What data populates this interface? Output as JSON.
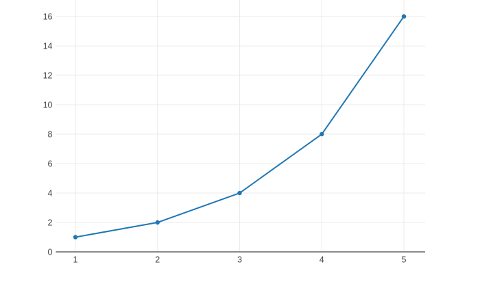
{
  "chart_data": {
    "type": "line",
    "title": "",
    "xlabel": "",
    "ylabel": "",
    "legend": false,
    "grid": true,
    "series": [
      {
        "x": [
          1,
          2,
          3,
          4,
          5
        ],
        "y": [
          1,
          2,
          4,
          8,
          16
        ],
        "color": "#1f77b4",
        "marker": "circle",
        "marker_size": 3.2,
        "line_width": 2
      }
    ],
    "x_tick_values": [
      1,
      2,
      3,
      4,
      5
    ],
    "x_tick_labels": [
      "1",
      "2",
      "3",
      "4",
      "5"
    ],
    "y_tick_values": [
      0,
      2,
      4,
      6,
      8,
      10,
      12,
      14,
      16
    ],
    "y_tick_labels": [
      "0",
      "2",
      "4",
      "6",
      "8",
      "10",
      "12",
      "14",
      "16"
    ],
    "xlim": [
      0.762,
      5.259
    ],
    "ylim": [
      0,
      17.12
    ],
    "colors": {
      "background": "#ffffff",
      "grid": "#ebebeb",
      "axis_line": "#444444",
      "tick_label": "#444444",
      "series": "#1f77b4"
    }
  }
}
